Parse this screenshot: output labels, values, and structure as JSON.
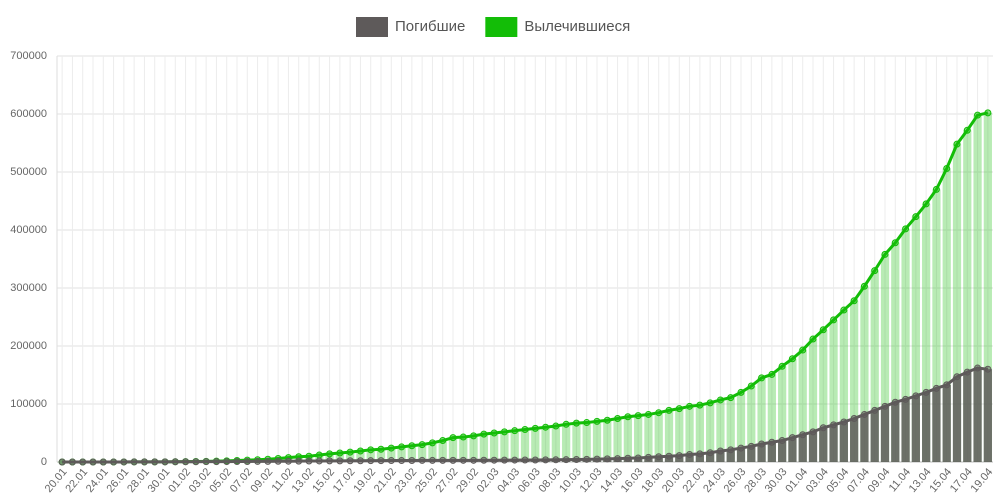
{
  "chart_data": {
    "type": "bar_line",
    "categories": [
      "20.01",
      null,
      "22.01",
      null,
      "24.01",
      null,
      "26.01",
      null,
      "28.01",
      null,
      "30.01",
      null,
      "01.02",
      null,
      "03.02",
      null,
      "05.02",
      null,
      "07.02",
      null,
      "09.02",
      null,
      "11.02",
      null,
      "13.02",
      null,
      "15.02",
      null,
      "17.02",
      null,
      "19.02",
      null,
      "21.02",
      null,
      "23.02",
      null,
      "25.02",
      null,
      "27.02",
      null,
      "29.02",
      null,
      "02.03",
      null,
      "04.03",
      null,
      "06.03",
      null,
      "08.03",
      null,
      "10.03",
      null,
      "12.03",
      null,
      "14.03",
      null,
      "16.03",
      null,
      "18.03",
      null,
      "20.03",
      null,
      "22.03",
      null,
      "24.03",
      null,
      "26.03",
      null,
      "28.03",
      null,
      "30.03",
      null,
      "01.04",
      null,
      "03.04",
      null,
      "05.04",
      null,
      "07.04",
      null,
      "09.04",
      null,
      "11.04",
      null,
      "13.04",
      null,
      "15.04",
      null,
      "17.04",
      null,
      "19.04"
    ],
    "series": [
      {
        "name": "Погибшие",
        "color": "#5e5a5a",
        "values": [
          6,
          17,
          25,
          40,
          55,
          80,
          105,
          130,
          170,
          210,
          260,
          360,
          430,
          490,
          560,
          630,
          720,
          800,
          900,
          1000,
          1100,
          1300,
          1400,
          1500,
          1700,
          1800,
          1900,
          2000,
          2100,
          2200,
          2300,
          2400,
          2500,
          2500,
          2600,
          2700,
          2700,
          2800,
          2800,
          2900,
          2900,
          3000,
          3100,
          3200,
          3300,
          3400,
          3500,
          3600,
          3800,
          4000,
          4300,
          4600,
          5000,
          5400,
          5800,
          6500,
          7000,
          8000,
          9000,
          10000,
          11000,
          13000,
          14000,
          16000,
          19000,
          21000,
          24000,
          27000,
          31000,
          34000,
          37000,
          42000,
          47000,
          52000,
          59000,
          64000,
          69000,
          75000,
          82000,
          89000,
          96000,
          103000,
          108000,
          114000,
          120000,
          127000,
          133000,
          147000,
          155000,
          162000,
          160000
        ]
      },
      {
        "name": "Вылечившиеся",
        "color": "#13bd07",
        "values": [
          25,
          28,
          30,
          40,
          50,
          60,
          100,
          120,
          140,
          220,
          280,
          470,
          620,
          850,
          1100,
          1500,
          2000,
          2600,
          3200,
          3900,
          4700,
          6000,
          7500,
          9000,
          10000,
          12000,
          14000,
          15500,
          17000,
          19000,
          21000,
          22000,
          24000,
          26000,
          28000,
          30000,
          33000,
          37000,
          42000,
          43000,
          45000,
          48000,
          50000,
          52000,
          54000,
          56000,
          58000,
          60000,
          62000,
          65000,
          67000,
          68000,
          70000,
          72000,
          75000,
          78000,
          80000,
          82000,
          85000,
          89000,
          92000,
          96000,
          98000,
          102000,
          107000,
          111000,
          120000,
          131000,
          145000,
          151000,
          165000,
          178000,
          193000,
          212000,
          228000,
          245000,
          262000,
          278000,
          303000,
          330000,
          358000,
          378000,
          402000,
          423000,
          445000,
          470000,
          506000,
          548000,
          572000,
          598000,
          602000
        ]
      }
    ],
    "ylim": [
      0,
      700000
    ],
    "yticks": [
      0,
      100000,
      200000,
      300000,
      400000,
      500000,
      600000,
      700000
    ],
    "grid": true,
    "legend": "top"
  }
}
